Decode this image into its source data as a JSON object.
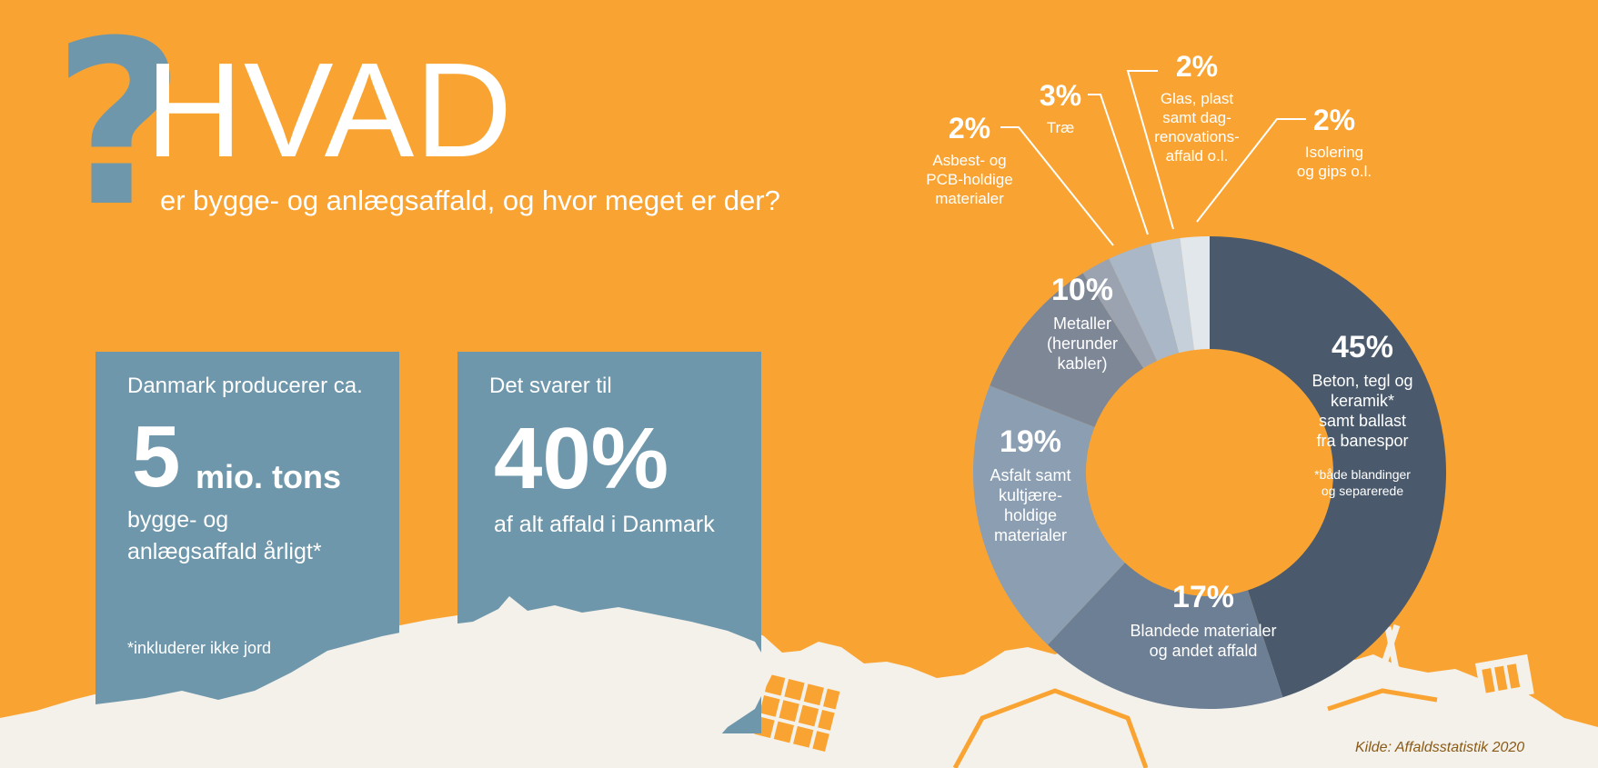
{
  "header": {
    "question_mark": "?",
    "title": "HVAD",
    "subtitle": "er bygge- og anlægsaffald, og hvor meget er der?"
  },
  "stat_boxes": [
    {
      "intro": "Danmark producerer ca.",
      "big_value": "5",
      "big_unit": "mio. tons",
      "description_line1": "bygge- og",
      "description_line2": "anlægsaffald årligt*",
      "note": "*inkluderer ikke jord"
    },
    {
      "intro": "Det svarer til",
      "big_value": "40%",
      "description_line1": "af alt affald i Danmark"
    }
  ],
  "source": "Kilde: Affaldsstatistik 2020",
  "colors": {
    "background": "#f9a432",
    "box": "#6f97ab",
    "skyline": "#f4f1ea"
  },
  "chart_data": {
    "type": "pie",
    "variant": "donut",
    "start_angle_deg": 0,
    "direction": "clockwise",
    "slices": [
      {
        "value": 45,
        "label": "45%",
        "name_lines": [
          "Beton, tegl og",
          "keramik*",
          "samt ballast",
          "fra banespor"
        ],
        "note_lines": [
          "*både blandinger",
          "og separerede"
        ],
        "color": "#4a5a6c"
      },
      {
        "value": 17,
        "label": "17%",
        "name_lines": [
          "Blandede materialer",
          "og andet affald"
        ],
        "color": "#6d7f95"
      },
      {
        "value": 19,
        "label": "19%",
        "name_lines": [
          "Asfalt samt",
          "kultjære-",
          "holdige",
          "materialer"
        ],
        "color": "#8b9eb2"
      },
      {
        "value": 10,
        "label": "10%",
        "name_lines": [
          "Metaller",
          "(herunder",
          "kabler)"
        ],
        "color": "#7e8796"
      },
      {
        "value": 2,
        "label": "2%",
        "name_lines": [
          "Asbest- og",
          "PCB-holdige",
          "materialer"
        ],
        "color": "#9ba3b1"
      },
      {
        "value": 3,
        "label": "3%",
        "name_lines": [
          "Træ"
        ],
        "color": "#a9b7c7"
      },
      {
        "value": 2,
        "label": "2%",
        "name_lines": [
          "Glas, plast",
          "samt dag-",
          "renovations-",
          "affald o.l."
        ],
        "color": "#c6d0db"
      },
      {
        "value": 2,
        "label": "2%",
        "name_lines": [
          "Isolering",
          "og gips o.l."
        ],
        "color": "#e2e7ec"
      }
    ]
  }
}
